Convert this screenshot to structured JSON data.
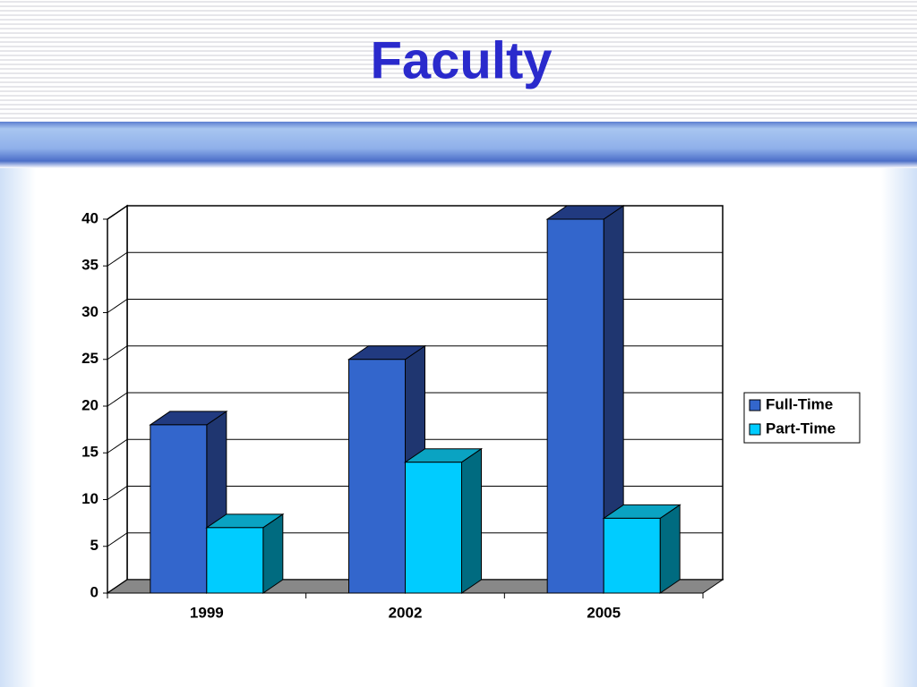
{
  "chart_data": {
    "type": "bar3d",
    "title": "Faculty",
    "categories": [
      "1999",
      "2002",
      "2005"
    ],
    "series": [
      {
        "name": "Full-Time",
        "color": "#3366cc",
        "values": [
          18,
          25,
          40
        ]
      },
      {
        "name": "Part-Time",
        "color": "#00ccff",
        "values": [
          7,
          14,
          8
        ]
      }
    ],
    "ylim": [
      0,
      40
    ],
    "yticks": [
      0,
      5,
      10,
      15,
      20,
      25,
      30,
      35,
      40
    ],
    "grid": true,
    "legend": "right"
  }
}
